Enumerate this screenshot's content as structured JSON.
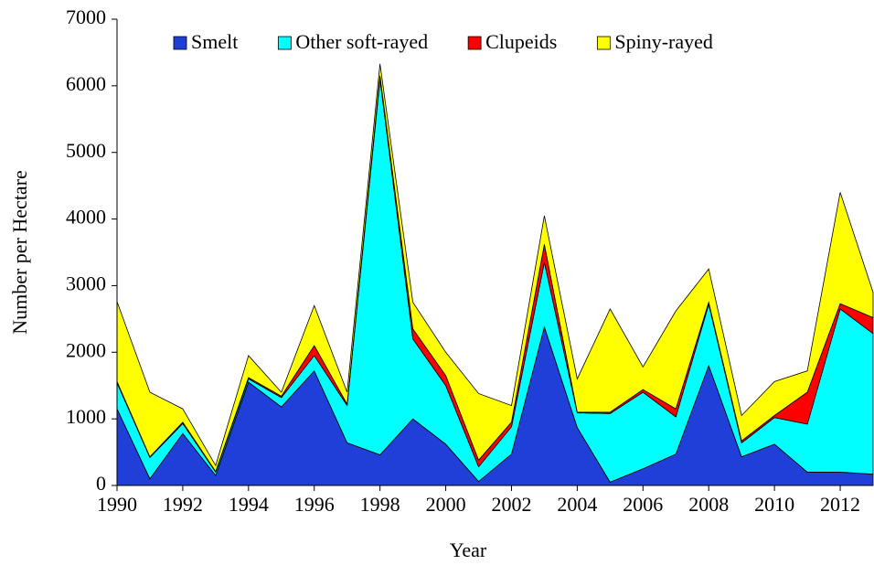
{
  "chart_data": {
    "type": "stacked_area",
    "x_label": "Year",
    "y_label": "Number per Hectare",
    "x": [
      1990,
      1991,
      1992,
      1993,
      1994,
      1995,
      1996,
      1997,
      1998,
      1999,
      2000,
      2001,
      2002,
      2003,
      2004,
      2005,
      2006,
      2007,
      2008,
      2009,
      2010,
      2011,
      2012,
      2013
    ],
    "series": [
      {
        "name": "Smelt",
        "color": "#1f3fd8",
        "values": [
          1150,
          100,
          780,
          150,
          1550,
          1180,
          1720,
          640,
          460,
          1000,
          620,
          60,
          470,
          2380,
          870,
          50,
          250,
          470,
          1800,
          430,
          620,
          200,
          200,
          170
        ]
      },
      {
        "name": "Other soft-rayed",
        "color": "#00ffff",
        "values": [
          390,
          320,
          150,
          50,
          50,
          140,
          230,
          560,
          5640,
          1200,
          880,
          220,
          410,
          970,
          220,
          1030,
          1150,
          560,
          920,
          210,
          400,
          720,
          2450,
          2110
        ]
      },
      {
        "name": "Clupeids",
        "color": "#ff0000",
        "values": [
          20,
          10,
          20,
          10,
          20,
          20,
          150,
          20,
          50,
          150,
          150,
          100,
          70,
          270,
          10,
          20,
          40,
          120,
          30,
          30,
          30,
          480,
          80,
          240
        ]
      },
      {
        "name": "Spiny-rayed",
        "color": "#ffff00",
        "values": [
          1200,
          970,
          200,
          90,
          330,
          60,
          600,
          180,
          180,
          400,
          350,
          1000,
          250,
          430,
          500,
          1550,
          340,
          1470,
          500,
          380,
          510,
          320,
          1670,
          380
        ]
      }
    ],
    "xlim": [
      1990,
      2013
    ],
    "xticks": [
      1990,
      1992,
      1994,
      1996,
      1998,
      2000,
      2002,
      2004,
      2006,
      2008,
      2010,
      2012
    ],
    "ylim": [
      0,
      7000
    ],
    "yticks": [
      0,
      1000,
      2000,
      3000,
      4000,
      5000,
      6000,
      7000
    ],
    "legend": "top"
  }
}
